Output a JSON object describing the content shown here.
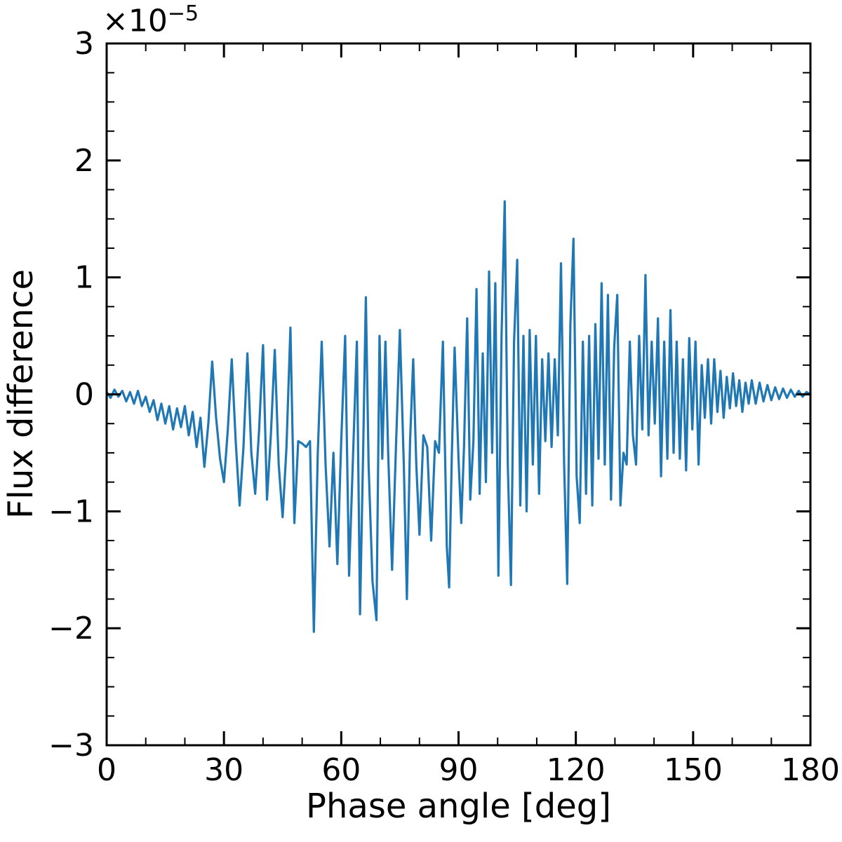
{
  "figure": {
    "background": "#ffffff"
  },
  "chart_data": {
    "type": "line",
    "title": "",
    "xlabel": "Phase angle [deg]",
    "ylabel": "Flux difference",
    "y_offset_base": "×10",
    "y_offset_exponent": "−5",
    "y_unit_scale": 1e-05,
    "x_range": [
      0,
      180
    ],
    "y_range_scaled": [
      -3,
      3
    ],
    "x_ticks": [
      0,
      30,
      60,
      90,
      120,
      150,
      180
    ],
    "x_tick_labels": [
      "0",
      "30",
      "60",
      "90",
      "120",
      "150",
      "180"
    ],
    "x_minor_step": 10,
    "y_ticks_scaled": [
      -3,
      -2,
      -1,
      0,
      1,
      2,
      3
    ],
    "y_tick_labels": [
      "−3",
      "−2",
      "−1",
      "0",
      "1",
      "2",
      "3"
    ],
    "y_minor_step": 0.25,
    "grid": false,
    "axis_color": "#000000",
    "tick_direction": "in",
    "series": [
      {
        "name": "flux difference",
        "color": "#1f77b4",
        "points": [
          [
            0,
            0.02
          ],
          [
            1,
            -0.03
          ],
          [
            2,
            0.04
          ],
          [
            3,
            -0.02
          ],
          [
            4,
            0.03
          ],
          [
            5,
            -0.06
          ],
          [
            6,
            0.02
          ],
          [
            7,
            -0.08
          ],
          [
            8,
            0.03
          ],
          [
            9,
            -0.1
          ],
          [
            10,
            -0.02
          ],
          [
            11,
            -0.15
          ],
          [
            12,
            -0.05
          ],
          [
            13,
            -0.22
          ],
          [
            14,
            -0.08
          ],
          [
            15,
            -0.25
          ],
          [
            16,
            -0.1
          ],
          [
            17,
            -0.3
          ],
          [
            18,
            -0.12
          ],
          [
            19,
            -0.28
          ],
          [
            20,
            -0.1
          ],
          [
            21,
            -0.35
          ],
          [
            22,
            -0.15
          ],
          [
            23,
            -0.45
          ],
          [
            24,
            -0.2
          ],
          [
            25,
            -0.62
          ],
          [
            26,
            -0.25
          ],
          [
            27,
            0.28
          ],
          [
            28,
            -0.2
          ],
          [
            29,
            -0.55
          ],
          [
            30,
            -0.75
          ],
          [
            31,
            -0.3
          ],
          [
            32,
            0.3
          ],
          [
            33,
            -0.4
          ],
          [
            34,
            -0.95
          ],
          [
            35,
            -0.45
          ],
          [
            36,
            0.35
          ],
          [
            37,
            -0.5
          ],
          [
            38,
            -0.85
          ],
          [
            39,
            -0.3
          ],
          [
            40,
            0.42
          ],
          [
            41,
            -0.9
          ],
          [
            42,
            -0.35
          ],
          [
            43,
            0.38
          ],
          [
            44,
            -0.6
          ],
          [
            45,
            -1.05
          ],
          [
            46,
            -0.45
          ],
          [
            47,
            0.57
          ],
          [
            48,
            -1.1
          ],
          [
            49,
            -0.4
          ],
          [
            50,
            -0.42
          ],
          [
            51,
            -0.45
          ],
          [
            52,
            -0.4
          ],
          [
            53,
            -2.03
          ],
          [
            54,
            -0.5
          ],
          [
            55,
            0.45
          ],
          [
            56,
            -0.6
          ],
          [
            57,
            -1.3
          ],
          [
            58,
            -0.5
          ],
          [
            59,
            -1.45
          ],
          [
            60,
            -0.4
          ],
          [
            61,
            0.5
          ],
          [
            62,
            -1.55
          ],
          [
            63,
            -0.55
          ],
          [
            64,
            0.45
          ],
          [
            64.8,
            -1.88
          ],
          [
            65.6,
            -0.5
          ],
          [
            66.3,
            0.83
          ],
          [
            67,
            -0.6
          ],
          [
            68,
            -1.6
          ],
          [
            69,
            -1.93
          ],
          [
            69.8,
            0.5
          ],
          [
            70.5,
            -0.55
          ],
          [
            71.3,
            0.45
          ],
          [
            72,
            -0.5
          ],
          [
            73,
            -1.5
          ],
          [
            74,
            -0.45
          ],
          [
            75,
            0.55
          ],
          [
            76,
            -0.6
          ],
          [
            76.8,
            -1.75
          ],
          [
            77.6,
            -0.4
          ],
          [
            78.4,
            0.3
          ],
          [
            79.2,
            -0.6
          ],
          [
            80,
            -1.2
          ],
          [
            81,
            -0.35
          ],
          [
            82,
            -0.45
          ],
          [
            83,
            -1.25
          ],
          [
            84,
            -0.4
          ],
          [
            85,
            -0.5
          ],
          [
            86,
            0.45
          ],
          [
            87,
            -1.3
          ],
          [
            87.6,
            -1.65
          ],
          [
            88.3,
            -0.5
          ],
          [
            89,
            0.4
          ],
          [
            90,
            -0.55
          ],
          [
            90.7,
            -1.1
          ],
          [
            91.4,
            -0.45
          ],
          [
            92.2,
            0.65
          ],
          [
            93,
            -0.9
          ],
          [
            93.8,
            -0.4
          ],
          [
            94.6,
            0.9
          ],
          [
            95.4,
            -0.85
          ],
          [
            96.2,
            0.35
          ],
          [
            97,
            -0.75
          ],
          [
            97.8,
            1.05
          ],
          [
            98.6,
            -0.5
          ],
          [
            99.4,
            0.95
          ],
          [
            100.2,
            -1.55
          ],
          [
            101,
            0.5
          ],
          [
            101.8,
            1.65
          ],
          [
            102.6,
            -0.6
          ],
          [
            103.4,
            -1.63
          ],
          [
            104.2,
            0.45
          ],
          [
            105,
            1.15
          ],
          [
            105.8,
            -0.95
          ],
          [
            106.6,
            0.5
          ],
          [
            107.4,
            -1.0
          ],
          [
            108.2,
            0.55
          ],
          [
            109,
            -0.6
          ],
          [
            109.8,
            0.5
          ],
          [
            110.6,
            -0.85
          ],
          [
            111.4,
            0.3
          ],
          [
            112.2,
            -0.4
          ],
          [
            113,
            0.35
          ],
          [
            113.8,
            -0.45
          ],
          [
            114.6,
            0.3
          ],
          [
            115.4,
            -0.35
          ],
          [
            116.2,
            1.12
          ],
          [
            117,
            -0.6
          ],
          [
            117.8,
            -1.62
          ],
          [
            118.6,
            0.6
          ],
          [
            119.4,
            1.33
          ],
          [
            120.2,
            -0.7
          ],
          [
            121,
            -1.1
          ],
          [
            121.8,
            0.45
          ],
          [
            122.6,
            -0.85
          ],
          [
            123.4,
            0.5
          ],
          [
            124.2,
            -0.95
          ],
          [
            125,
            0.6
          ],
          [
            125.8,
            -0.55
          ],
          [
            126.6,
            0.95
          ],
          [
            127.4,
            -0.6
          ],
          [
            128.2,
            0.85
          ],
          [
            129,
            -0.9
          ],
          [
            129.8,
            0.4
          ],
          [
            130.6,
            0.85
          ],
          [
            131.4,
            -0.95
          ],
          [
            132.2,
            -0.5
          ],
          [
            133,
            -0.6
          ],
          [
            133.8,
            0.45
          ],
          [
            134.6,
            -0.35
          ],
          [
            135.4,
            -0.6
          ],
          [
            136.2,
            0.5
          ],
          [
            137,
            -0.3
          ],
          [
            137.8,
            1.02
          ],
          [
            138.6,
            -0.35
          ],
          [
            139.4,
            0.45
          ],
          [
            140.2,
            -0.25
          ],
          [
            141,
            0.65
          ],
          [
            141.8,
            -0.7
          ],
          [
            142.6,
            0.45
          ],
          [
            143.4,
            -0.55
          ],
          [
            144.2,
            0.72
          ],
          [
            145,
            -0.5
          ],
          [
            145.8,
            0.45
          ],
          [
            146.6,
            -0.55
          ],
          [
            147.4,
            0.3
          ],
          [
            148.2,
            -0.65
          ],
          [
            149,
            0.48
          ],
          [
            149.8,
            -0.3
          ],
          [
            150.6,
            0.45
          ],
          [
            151.4,
            -0.6
          ],
          [
            152.2,
            0.25
          ],
          [
            153,
            -0.2
          ],
          [
            153.8,
            0.3
          ],
          [
            154.6,
            -0.25
          ],
          [
            155.4,
            0.3
          ],
          [
            156.2,
            -0.15
          ],
          [
            157,
            0.2
          ],
          [
            157.8,
            -0.2
          ],
          [
            158.6,
            0.15
          ],
          [
            159.4,
            -0.12
          ],
          [
            160.2,
            0.18
          ],
          [
            161,
            -0.1
          ],
          [
            161.8,
            0.12
          ],
          [
            162.6,
            -0.15
          ],
          [
            163.4,
            0.1
          ],
          [
            164.2,
            -0.08
          ],
          [
            165,
            0.12
          ],
          [
            166,
            -0.08
          ],
          [
            167,
            0.1
          ],
          [
            168,
            -0.06
          ],
          [
            169,
            0.08
          ],
          [
            170,
            -0.05
          ],
          [
            171,
            0.06
          ],
          [
            172,
            -0.04
          ],
          [
            173,
            0.05
          ],
          [
            174,
            -0.03
          ],
          [
            175,
            0.04
          ],
          [
            176,
            -0.02
          ],
          [
            177,
            0.03
          ],
          [
            178,
            -0.02
          ],
          [
            179,
            0.02
          ],
          [
            180,
            0
          ]
        ]
      }
    ]
  }
}
